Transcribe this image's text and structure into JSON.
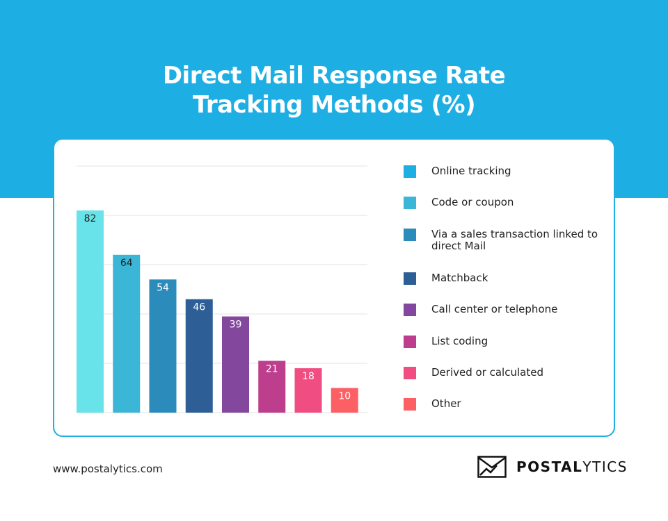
{
  "header": {
    "title_line1": "Direct Mail Response Rate",
    "title_line2": "Tracking Methods (%)"
  },
  "colors": {
    "banner": "#1daee3",
    "card_border": "#1daee3",
    "grid": "#e3e3e3"
  },
  "chart_data": {
    "type": "bar",
    "categories": [
      "Online tracking",
      "Code or coupon",
      "Via a sales transaction linked to direct Mail",
      "Matchback",
      "Call center or telephone",
      "List coding",
      "Derived or calculated",
      "Other"
    ],
    "values": [
      82,
      64,
      54,
      46,
      39,
      21,
      18,
      10
    ],
    "bar_colors": [
      "#68e3ea",
      "#3cb6d6",
      "#2b8bbb",
      "#2d5e96",
      "#83479e",
      "#bd3e8c",
      "#f04d82",
      "#fd6064"
    ],
    "legend_colors": [
      "#1daee3",
      "#3cb6d6",
      "#2b8bbb",
      "#2d5e96",
      "#83479e",
      "#bd3e8c",
      "#f04d82",
      "#fd6064"
    ],
    "ylim": [
      0,
      100
    ],
    "yticks": [
      0,
      20,
      40,
      60,
      80,
      100
    ],
    "grid": true,
    "legend": "right"
  },
  "footer": {
    "url": "www.postalytics.com",
    "logo_bold": "POSTAL",
    "logo_thin": "YTICS"
  }
}
